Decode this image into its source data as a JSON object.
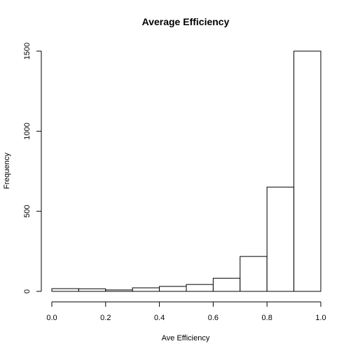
{
  "chart_data": {
    "type": "bar",
    "title": "Average Efficiency",
    "xlabel": "Ave Efficiency",
    "ylabel": "Frequency",
    "bins": [
      {
        "start": 0.0,
        "end": 0.1,
        "value": 17
      },
      {
        "start": 0.1,
        "end": 0.2,
        "value": 16
      },
      {
        "start": 0.2,
        "end": 0.3,
        "value": 9
      },
      {
        "start": 0.3,
        "end": 0.4,
        "value": 22
      },
      {
        "start": 0.4,
        "end": 0.5,
        "value": 31
      },
      {
        "start": 0.5,
        "end": 0.6,
        "value": 43
      },
      {
        "start": 0.6,
        "end": 0.7,
        "value": 82
      },
      {
        "start": 0.7,
        "end": 0.8,
        "value": 218
      },
      {
        "start": 0.8,
        "end": 0.9,
        "value": 651
      },
      {
        "start": 0.9,
        "end": 1.0,
        "value": 1500
      }
    ],
    "xlim": [
      0.0,
      1.0
    ],
    "ylim": [
      0,
      1500
    ],
    "x_ticks": [
      "0.0",
      "0.2",
      "0.4",
      "0.6",
      "0.8",
      "1.0"
    ],
    "x_tick_values": [
      0.0,
      0.2,
      0.4,
      0.6,
      0.8,
      1.0
    ],
    "y_ticks": [
      "0",
      "500",
      "1000",
      "1500"
    ],
    "y_tick_values": [
      0,
      500,
      1000,
      1500
    ],
    "grid": false,
    "legend": "none"
  }
}
